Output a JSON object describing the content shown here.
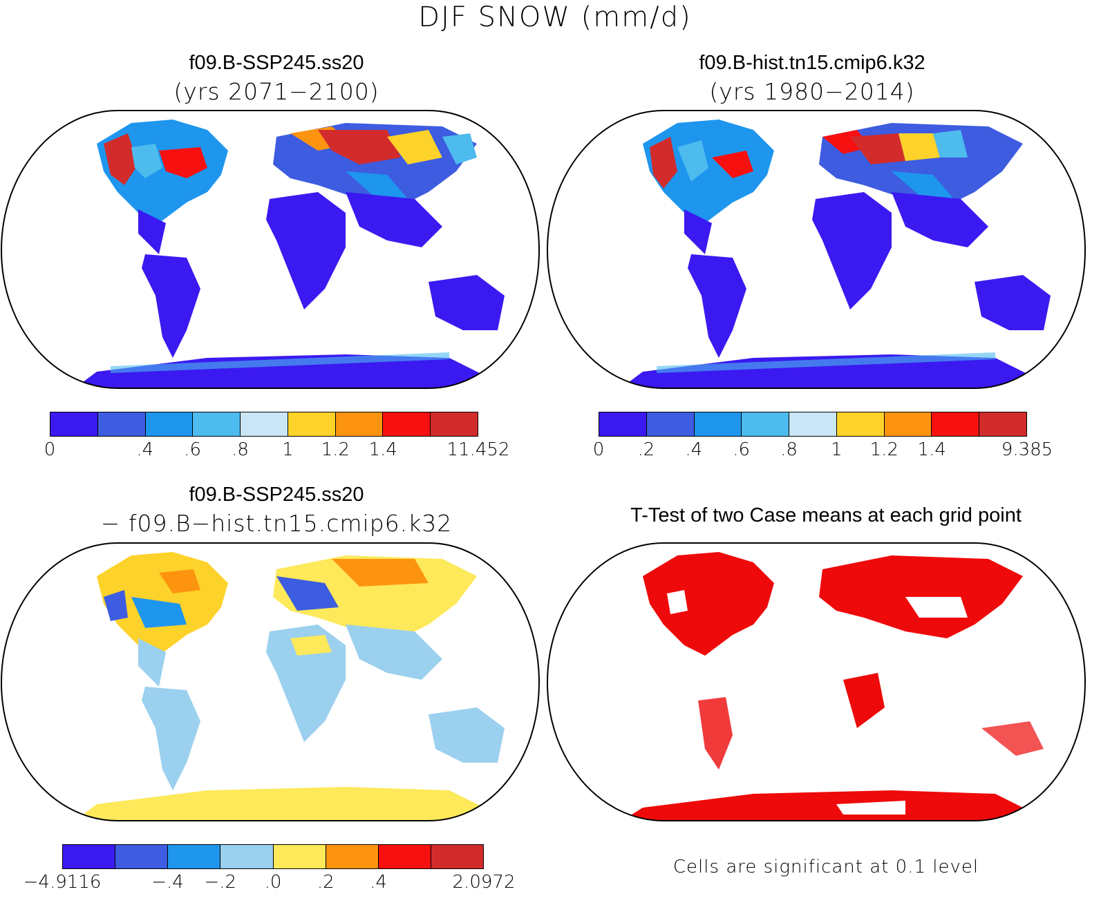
{
  "figure_title": "DJF SNOW (mm/d)",
  "panels": [
    {
      "id": "tl",
      "title": "f09.B-SSP245.ss20",
      "subtitle": "(yrs 2071−2100)",
      "colorbar": {
        "colors": [
          "#3a1af0",
          "#3d5ce0",
          "#1e96ee",
          "#4dbbee",
          "#c8e6f5",
          "#fdd22a",
          "#fd9410",
          "#f61010",
          "#d22b2b"
        ],
        "tick_labels": [
          "0",
          ".4",
          ".6",
          ".8",
          "1",
          "1.2",
          "1.4",
          "11.452"
        ],
        "tick_edges": [
          0,
          2,
          3,
          4,
          5,
          6,
          7,
          9
        ]
      }
    },
    {
      "id": "tr",
      "title": "f09.B-hist.tn15.cmip6.k32",
      "subtitle": "(yrs 1980−2014)",
      "colorbar": {
        "colors": [
          "#3a1af0",
          "#3d5ce0",
          "#1e96ee",
          "#4dbbee",
          "#c8e6f5",
          "#fdd22a",
          "#fd9410",
          "#f61010",
          "#d22b2b"
        ],
        "tick_labels": [
          "0",
          ".2",
          ".4",
          ".6",
          ".8",
          "1",
          "1.2",
          "1.4",
          "9.385"
        ],
        "tick_edges": [
          0,
          1,
          2,
          3,
          4,
          5,
          6,
          7,
          9
        ]
      }
    },
    {
      "id": "bl",
      "title": "f09.B-SSP245.ss20",
      "subtitle": "− f09.B−hist.tn15.cmip6.k32",
      "colorbar": {
        "colors": [
          "#3a1af0",
          "#3d5ce0",
          "#1e96ee",
          "#9bd0ee",
          "#fde95a",
          "#fd9410",
          "#f61010",
          "#d22b2b"
        ],
        "tick_labels": [
          "−4.9116",
          "−.4",
          "−.2",
          ".0",
          ".2",
          ".4",
          "2.0972"
        ],
        "tick_edges": [
          0,
          2,
          3,
          4,
          5,
          6,
          8
        ]
      }
    },
    {
      "id": "br",
      "title": "T-Test of two Case means at each grid point",
      "footnote": "Cells are significant at 0.1 level",
      "significant_color": "#ee0a0a"
    }
  ]
}
